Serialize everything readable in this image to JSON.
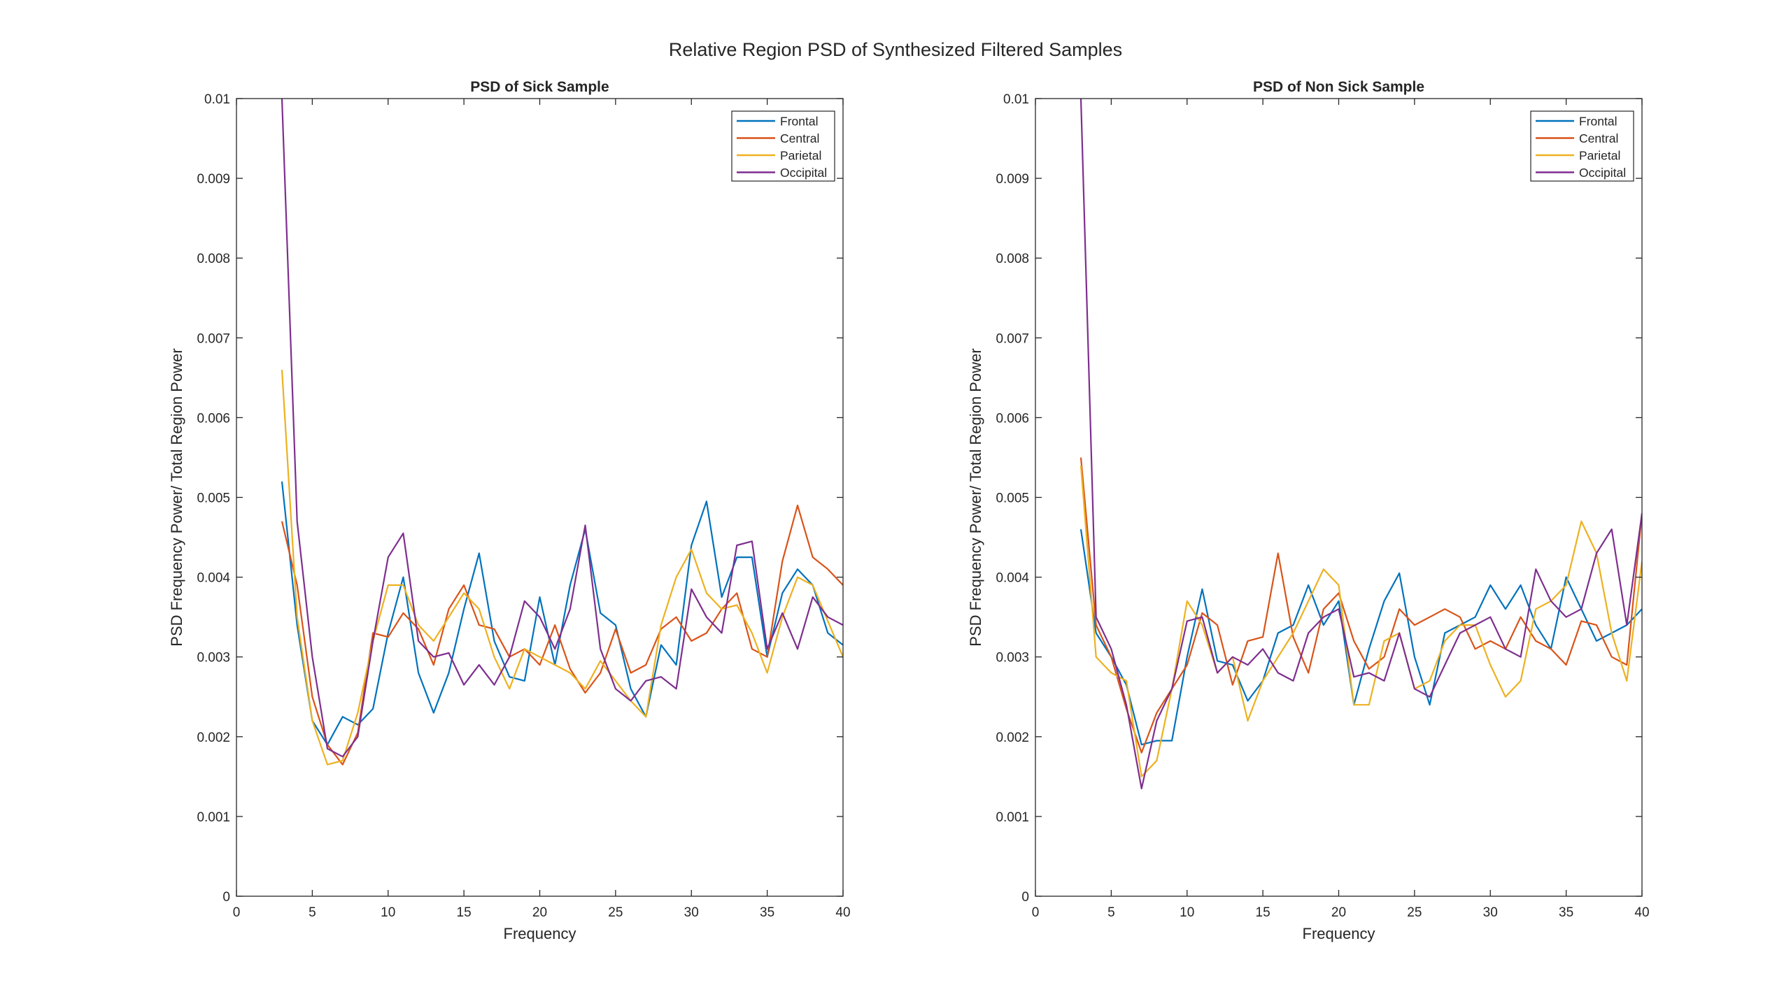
{
  "figure": {
    "suptitle": "Relative Region PSD of Synthesized Filtered Samples"
  },
  "legend_entries": [
    "Frontal",
    "Central",
    "Parietal",
    "Occipital"
  ],
  "colors": {
    "Frontal": "#0072BD",
    "Central": "#D95319",
    "Parietal": "#EDB120",
    "Occipital": "#7E2F8E",
    "axes": "#262626",
    "background": "#ffffff"
  },
  "chart_data": [
    {
      "type": "line",
      "title": "PSD of Sick Sample",
      "xlabel": "Frequency",
      "ylabel": "PSD Frequency Power/ Total Region Power",
      "xlim": [
        0,
        40
      ],
      "ylim": [
        0,
        0.01
      ],
      "xticks": [
        0,
        5,
        10,
        15,
        20,
        25,
        30,
        35,
        40
      ],
      "yticks": [
        0,
        0.001,
        0.002,
        0.003,
        0.004,
        0.005,
        0.006,
        0.007,
        0.008,
        0.009,
        0.01
      ],
      "legend_position": "top-right",
      "grid": false,
      "x": [
        3,
        4,
        5,
        6,
        7,
        8,
        9,
        10,
        11,
        12,
        13,
        14,
        15,
        16,
        17,
        18,
        19,
        20,
        21,
        22,
        23,
        24,
        25,
        26,
        27,
        28,
        29,
        30,
        31,
        32,
        33,
        34,
        35,
        36,
        37,
        38,
        39,
        40
      ],
      "series": [
        {
          "name": "Frontal",
          "color": "#0072BD",
          "values": [
            0.0052,
            0.0034,
            0.0022,
            0.0019,
            0.00225,
            0.00215,
            0.00235,
            0.0033,
            0.004,
            0.0028,
            0.0023,
            0.0028,
            0.0036,
            0.0043,
            0.0032,
            0.00275,
            0.0027,
            0.00375,
            0.0029,
            0.0039,
            0.0046,
            0.00355,
            0.0034,
            0.0026,
            0.00225,
            0.00315,
            0.0029,
            0.0044,
            0.00495,
            0.00375,
            0.00425,
            0.00425,
            0.003,
            0.0038,
            0.0041,
            0.0039,
            0.0033,
            0.00315
          ]
        },
        {
          "name": "Central",
          "color": "#D95319",
          "values": [
            0.0047,
            0.0039,
            0.0025,
            0.0019,
            0.00165,
            0.00205,
            0.0033,
            0.00325,
            0.00355,
            0.00335,
            0.0029,
            0.0036,
            0.0039,
            0.0034,
            0.00335,
            0.003,
            0.0031,
            0.0029,
            0.0034,
            0.00285,
            0.00255,
            0.0028,
            0.00335,
            0.0028,
            0.0029,
            0.00335,
            0.0035,
            0.0032,
            0.0033,
            0.0036,
            0.0038,
            0.0031,
            0.003,
            0.0042,
            0.0049,
            0.00425,
            0.0041,
            0.0039
          ]
        },
        {
          "name": "Parietal",
          "color": "#EDB120",
          "values": [
            0.0066,
            0.0035,
            0.0022,
            0.00165,
            0.0017,
            0.0023,
            0.0032,
            0.0039,
            0.0039,
            0.0034,
            0.0032,
            0.0035,
            0.0038,
            0.0036,
            0.003,
            0.0026,
            0.0031,
            0.003,
            0.0029,
            0.0028,
            0.0026,
            0.00295,
            0.0027,
            0.00245,
            0.00225,
            0.0034,
            0.004,
            0.00435,
            0.0038,
            0.0036,
            0.00365,
            0.0033,
            0.0028,
            0.0035,
            0.004,
            0.0039,
            0.00345,
            0.003
          ]
        },
        {
          "name": "Occipital",
          "color": "#7E2F8E",
          "values": [
            0.01,
            0.0047,
            0.003,
            0.00185,
            0.00175,
            0.002,
            0.0032,
            0.00425,
            0.00455,
            0.0032,
            0.003,
            0.00305,
            0.00265,
            0.0029,
            0.00265,
            0.003,
            0.0037,
            0.0035,
            0.0031,
            0.0036,
            0.00465,
            0.0031,
            0.0026,
            0.00245,
            0.0027,
            0.00275,
            0.0026,
            0.00385,
            0.0035,
            0.0033,
            0.0044,
            0.00445,
            0.0031,
            0.00355,
            0.0031,
            0.00375,
            0.0035,
            0.0034
          ]
        }
      ]
    },
    {
      "type": "line",
      "title": "PSD of Non Sick Sample",
      "xlabel": "Frequency",
      "ylabel": "PSD Frequency Power/ Total Region Power",
      "xlim": [
        0,
        40
      ],
      "ylim": [
        0,
        0.01
      ],
      "xticks": [
        0,
        5,
        10,
        15,
        20,
        25,
        30,
        35,
        40
      ],
      "yticks": [
        0,
        0.001,
        0.002,
        0.003,
        0.004,
        0.005,
        0.006,
        0.007,
        0.008,
        0.009,
        0.01
      ],
      "legend_position": "top-right",
      "grid": false,
      "x": [
        3,
        4,
        5,
        6,
        7,
        8,
        9,
        10,
        11,
        12,
        13,
        14,
        15,
        16,
        17,
        18,
        19,
        20,
        21,
        22,
        23,
        24,
        25,
        26,
        27,
        28,
        29,
        30,
        31,
        32,
        33,
        34,
        35,
        36,
        37,
        38,
        39,
        40
      ],
      "series": [
        {
          "name": "Frontal",
          "color": "#0072BD",
          "values": [
            0.0046,
            0.0033,
            0.003,
            0.00265,
            0.0019,
            0.00195,
            0.00195,
            0.003,
            0.00385,
            0.00295,
            0.0029,
            0.00245,
            0.0027,
            0.0033,
            0.0034,
            0.0039,
            0.0034,
            0.0037,
            0.0024,
            0.0031,
            0.0037,
            0.00405,
            0.003,
            0.0024,
            0.0033,
            0.0034,
            0.0035,
            0.0039,
            0.0036,
            0.0039,
            0.0034,
            0.0031,
            0.004,
            0.0036,
            0.0032,
            0.0033,
            0.0034,
            0.0036
          ]
        },
        {
          "name": "Central",
          "color": "#D95319",
          "values": [
            0.0055,
            0.0034,
            0.003,
            0.00235,
            0.0018,
            0.0023,
            0.0026,
            0.0029,
            0.00355,
            0.0034,
            0.00265,
            0.0032,
            0.00325,
            0.0043,
            0.00325,
            0.0028,
            0.0036,
            0.0038,
            0.0032,
            0.00285,
            0.003,
            0.0036,
            0.0034,
            0.0035,
            0.0036,
            0.0035,
            0.0031,
            0.0032,
            0.0031,
            0.0035,
            0.0032,
            0.0031,
            0.0029,
            0.00345,
            0.0034,
            0.003,
            0.0029,
            0.0048
          ]
        },
        {
          "name": "Parietal",
          "color": "#EDB120",
          "values": [
            0.0054,
            0.003,
            0.0028,
            0.0027,
            0.0015,
            0.0017,
            0.0026,
            0.0037,
            0.0034,
            0.0028,
            0.003,
            0.0022,
            0.0027,
            0.003,
            0.0033,
            0.0037,
            0.0041,
            0.0039,
            0.0024,
            0.0024,
            0.0032,
            0.0033,
            0.0026,
            0.0027,
            0.0032,
            0.0034,
            0.0034,
            0.0029,
            0.0025,
            0.0027,
            0.0036,
            0.0037,
            0.0039,
            0.0047,
            0.0043,
            0.0033,
            0.0027,
            0.0042
          ]
        },
        {
          "name": "Occipital",
          "color": "#7E2F8E",
          "values": [
            0.01,
            0.0035,
            0.0031,
            0.0024,
            0.00135,
            0.0022,
            0.0026,
            0.00345,
            0.0035,
            0.0028,
            0.003,
            0.0029,
            0.0031,
            0.0028,
            0.0027,
            0.0033,
            0.0035,
            0.0036,
            0.00275,
            0.0028,
            0.0027,
            0.0033,
            0.0026,
            0.0025,
            0.0029,
            0.0033,
            0.0034,
            0.0035,
            0.0031,
            0.003,
            0.0041,
            0.0037,
            0.0035,
            0.0036,
            0.0043,
            0.0046,
            0.0034,
            0.0048
          ]
        }
      ]
    }
  ]
}
